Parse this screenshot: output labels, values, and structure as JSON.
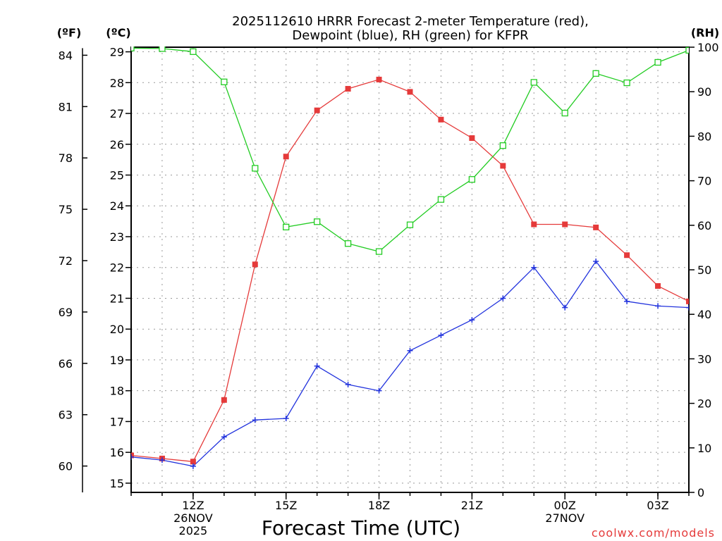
{
  "chart_data": {
    "type": "line",
    "title_line1": "2025112610 HRRR Forecast 2-meter Temperature (red),",
    "title_line2": "Dewpoint (blue), RH (green) for KFPR",
    "xlabel": "Forecast Time (UTC)",
    "credit": "coolwx.com/models",
    "units": {
      "fahrenheit": "(ºF)",
      "celsius": "(ºC)",
      "rh": "(RH)"
    },
    "x_hours": [
      10,
      11,
      12,
      13,
      14,
      15,
      16,
      17,
      18,
      19,
      20,
      21,
      22,
      23,
      24,
      25,
      26,
      27,
      28
    ],
    "xlim": [
      10,
      28
    ],
    "x_ticks": [
      {
        "hour": 12,
        "lines": [
          "12Z",
          "26NOV",
          "2025"
        ]
      },
      {
        "hour": 15,
        "lines": [
          "15Z"
        ]
      },
      {
        "hour": 18,
        "lines": [
          "18Z"
        ]
      },
      {
        "hour": 21,
        "lines": [
          "21Z"
        ]
      },
      {
        "hour": 24,
        "lines": [
          "00Z",
          "27NOV"
        ]
      },
      {
        "hour": 27,
        "lines": [
          "03Z"
        ]
      }
    ],
    "celsius_ticks": [
      15,
      16,
      17,
      18,
      19,
      20,
      21,
      22,
      23,
      24,
      25,
      26,
      27,
      28,
      29
    ],
    "fahrenheit_ticks": [
      60,
      63,
      66,
      69,
      72,
      75,
      78,
      81,
      84
    ],
    "rh_ticks": [
      0,
      10,
      20,
      30,
      40,
      50,
      60,
      70,
      80,
      90,
      100
    ],
    "ylim_celsius": [
      14.7,
      29.15
    ],
    "ylim_rh": [
      0,
      100
    ],
    "colors": {
      "temperature": "#e53a3a",
      "dewpoint": "#2233dd",
      "rh": "#22cc22",
      "grid": "#999999"
    },
    "series": [
      {
        "name": "Temperature",
        "unit": "C",
        "values": [
          15.9,
          15.8,
          15.7,
          17.7,
          22.1,
          25.6,
          27.1,
          27.8,
          28.1,
          27.7,
          26.8,
          26.2,
          25.3,
          23.4,
          23.4,
          23.3,
          22.4,
          21.4,
          20.9
        ]
      },
      {
        "name": "Dewpoint",
        "unit": "C",
        "values": [
          15.85,
          15.75,
          15.55,
          16.5,
          17.05,
          17.1,
          18.8,
          18.2,
          18.0,
          19.3,
          19.8,
          20.3,
          21.0,
          22.0,
          20.7,
          22.2,
          20.9,
          20.75,
          20.7
        ]
      },
      {
        "name": "RH",
        "unit": "%",
        "values": [
          99.8,
          99.7,
          99.0,
          92.2,
          72.8,
          59.6,
          60.8,
          55.9,
          54.1,
          60.1,
          65.8,
          70.3,
          77.9,
          92.1,
          85.2,
          94.1,
          92.0,
          96.6,
          99.3
        ]
      }
    ]
  }
}
